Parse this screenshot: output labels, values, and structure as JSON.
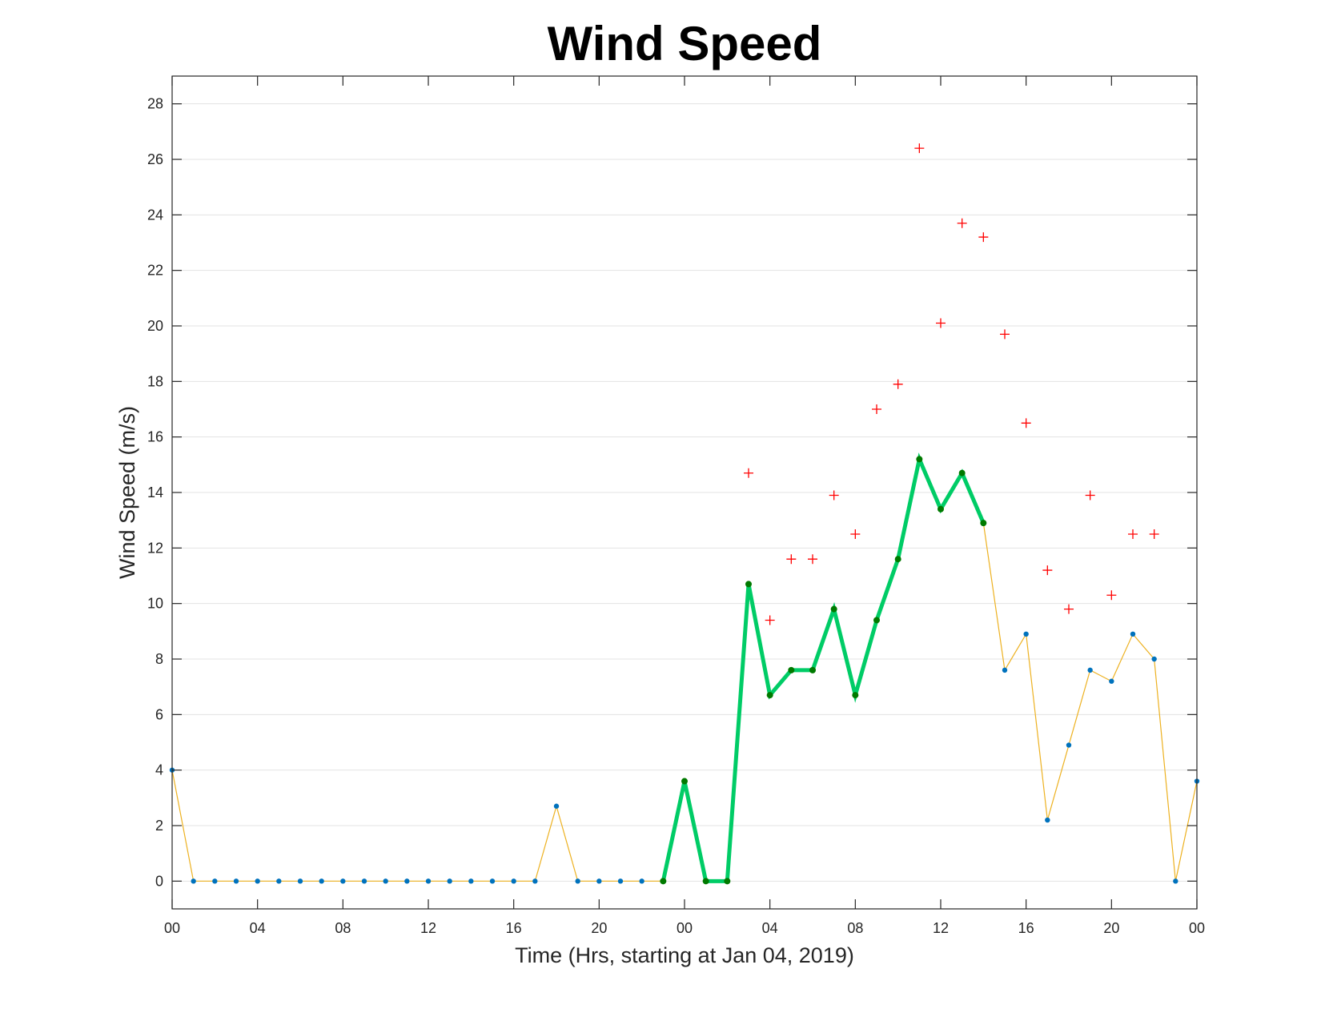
{
  "chart_data": {
    "type": "line",
    "title": "Wind Speed",
    "xlabel": "Time (Hrs, starting at Jan 04, 2019)",
    "ylabel": "Wind Speed (m/s)",
    "x_unit": "hours",
    "xlim": [
      0,
      48
    ],
    "ylim": [
      -1,
      29
    ],
    "grid": true,
    "x_ticks": [
      0,
      4,
      8,
      12,
      16,
      20,
      24,
      28,
      32,
      36,
      40,
      44,
      48
    ],
    "x_tick_labels": [
      "00",
      "04",
      "08",
      "12",
      "16",
      "20",
      "00",
      "04",
      "08",
      "12",
      "16",
      "20",
      "00"
    ],
    "y_ticks": [
      0,
      2,
      4,
      6,
      8,
      10,
      12,
      14,
      16,
      18,
      20,
      22,
      24,
      26,
      28
    ],
    "y_tick_labels": [
      "0",
      "2",
      "4",
      "6",
      "8",
      "10",
      "12",
      "14",
      "16",
      "18",
      "20",
      "22",
      "24",
      "26",
      "28"
    ],
    "series": [
      {
        "style": "thin-line-with-dots",
        "line_color": "#edb120",
        "marker_color": "#0072bd",
        "x": [
          0,
          1,
          2,
          3,
          4,
          5,
          6,
          7,
          8,
          9,
          10,
          11,
          12,
          13,
          14,
          15,
          16,
          17,
          18,
          19,
          20,
          21,
          22,
          23,
          24,
          25,
          26,
          27,
          28,
          29,
          30,
          31,
          32,
          33,
          34,
          35,
          36,
          37,
          38,
          39,
          40,
          41,
          42,
          43,
          44,
          45,
          46,
          47,
          48
        ],
        "values": [
          4.0,
          0,
          0,
          0,
          0,
          0,
          0,
          0,
          0,
          0,
          0,
          0,
          0,
          0,
          0,
          0,
          0,
          0,
          2.7,
          0,
          0,
          0,
          0,
          0,
          3.6,
          0,
          0,
          10.7,
          6.7,
          7.6,
          7.6,
          9.8,
          6.7,
          9.4,
          11.6,
          15.2,
          13.4,
          14.7,
          12.9,
          7.6,
          8.9,
          2.2,
          4.9,
          7.6,
          7.2,
          8.9,
          8.0,
          0,
          3.6
        ]
      },
      {
        "style": "thick-line-with-dots",
        "line_color": "#00cc66",
        "marker_color": "#007a00",
        "x": [
          23,
          24,
          25,
          26,
          27,
          28,
          29,
          30,
          31,
          32,
          33,
          34,
          35,
          36,
          37,
          38
        ],
        "values": [
          0,
          3.6,
          0,
          0,
          10.7,
          6.7,
          7.6,
          7.6,
          9.8,
          6.7,
          9.4,
          11.6,
          15.2,
          13.4,
          14.7,
          12.9
        ]
      },
      {
        "style": "plus-markers",
        "marker_color": "#ff0000",
        "x": [
          27,
          28,
          29,
          30,
          31,
          32,
          33,
          34,
          35,
          36,
          37,
          38,
          39,
          40,
          41,
          42,
          43,
          44,
          45,
          46
        ],
        "values": [
          14.7,
          9.4,
          11.6,
          11.6,
          13.9,
          12.5,
          17.0,
          17.9,
          26.4,
          20.1,
          23.7,
          23.2,
          19.7,
          16.5,
          11.2,
          9.8,
          13.9,
          10.3,
          12.5,
          12.5
        ]
      }
    ]
  }
}
